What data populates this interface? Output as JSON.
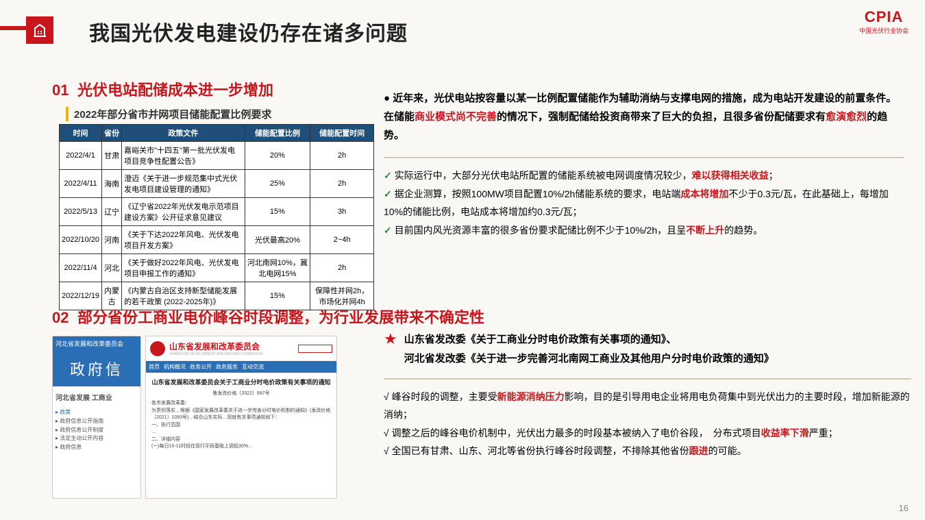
{
  "header": {
    "title": "我国光伏发电建设仍存在诸多问题",
    "logo_main": "CPIA",
    "logo_sub": "中国光伏行业协会"
  },
  "section1": {
    "num": "01",
    "heading": "光伏电站配储成本进一步增加",
    "subcaption": "2022年部分省市并网项目储能配置比例要求",
    "table": {
      "headers": [
        "时间",
        "省份",
        "政策文件",
        "储能配置比例",
        "储能配置时间"
      ],
      "rows": [
        [
          "2022/4/1",
          "甘肃",
          "嘉峪关市\"十四五\"第一批光伏发电项目竞争性配置公告》",
          "20%",
          "2h"
        ],
        [
          "2022/4/11",
          "海南",
          "澄迈《关于进一步规范集中式光伏发电项目建设管理的通知》",
          "25%",
          "2h"
        ],
        [
          "2022/5/13",
          "辽宁",
          "《辽宁省2022年光伏发电示范项目建设方案》公开征求意见建议",
          "15%",
          "3h"
        ],
        [
          "2022/10/20",
          "河南",
          "《关于下达2022年风电、光伏发电项目开发方案》",
          "光伏最高20%",
          "2~4h"
        ],
        [
          "2022/11/4",
          "河北",
          "《关于做好2022年风电、光伏发电项目申报工作的通知》",
          "河北南网10%，冀北电网15%",
          "2h"
        ],
        [
          "2022/12/19",
          "内蒙古",
          "《内蒙古自治区支持新型储能发展的若干政策 (2022-2025年)》",
          "15%",
          "保障性并网2h，市场化并网4h"
        ]
      ]
    }
  },
  "right1": {
    "bullet_a": "近年来，光伏电站按容量以某一比例配置储能作为辅助消纳与支撑电网的措施，成为电站开发建设的前置条件。在储能",
    "bullet_a_hl": "商业模式尚不完善",
    "bullet_a2": "的情况下，强制配储给投资商带来了巨大的负担，且很多省份配储要求有",
    "bullet_a_hl2": "愈演愈烈",
    "bullet_a3": "的趋势。",
    "check1_a": "实际运行中，大部分光伏电站所配置的储能系统被电网调度情况较少，",
    "check1_hl": "难以获得相关收益",
    "check1_b": "；",
    "check2_a": "据企业测算，按照100MW项目配置10%/2h储能系统的要求，电站端",
    "check2_hl": "成本将增加",
    "check2_b": "不少于0.3元/瓦，在此基础上，每增加10%的储能比例，电站成本将增加约0.3元/瓦；",
    "check3_a": "目前国内风光资源丰富的很多省份要求配储比例不少于10%/2h，且呈",
    "check3_hl": "不断上升",
    "check3_b": "的趋势。"
  },
  "section2": {
    "num": "02",
    "heading": "部分省份工商业电价峰谷时段调整，为行业发展带来不确定性"
  },
  "shots": {
    "a_title": "河北省发展和改革委员会",
    "a_banner": "政府信",
    "a_side1": "河北省发展\n工商业",
    "a_menu1": "政策",
    "a_menu2": "政府信息公开指南",
    "a_menu3": "政府信息公开制度",
    "a_menu4": "法定主动公开内容",
    "a_menu5": "政府信息",
    "b_org": "山东省发展和改革委员会",
    "b_org_en": "SHANDONG DEVELOPMENT AND REFORM COMMISSION",
    "b_nav": [
      "首页",
      "机构概况",
      "政务公开",
      "政务服务",
      "互动交流"
    ],
    "b_doc_title": "山东省发展和改革委员会关于工商业分时电价政策有关事项的通知",
    "b_doc_no": "鲁发改价格〔2022〕997号",
    "b_body": "各市发展改革委：\n为贯彻落实…根据《国家发展改革委关于进一步完善分时电价机制的通知》(发改价格〔2021〕1093号)…结合山东实际…现就有关事项通知如下：\n一、执行范围\n…\n二、详细内容\n(一)每日10-11时段在现行平段基础上调低30%…"
  },
  "right2": {
    "star_line1": "山东省发改委《关于工商业分时电价政策有关事项的通知》、",
    "star_line2": "河北省发改委《关于进一步完善河北南网工商业及其他用户分时电价政策的通知》",
    "c1a": "峰谷时段的调整，主要受",
    "c1hl": "新能源消纳压力",
    "c1b": "影响，目的是引导用电企业将用电负荷集中到光伏出力的主要时段，增加新能源的消纳；",
    "c2a": "调整之后的峰谷电价机制中，光伏出力最多的时段基本被纳入了电价谷段，　分布式项目",
    "c2hl": "收益率下滑",
    "c2b": "严重；",
    "c3a": "全国已有甘肃、山东、河北等省份执行峰谷时段调整，不排除其他省份",
    "c3hl": "跟进",
    "c3b": "的可能。"
  },
  "page_number": "16"
}
